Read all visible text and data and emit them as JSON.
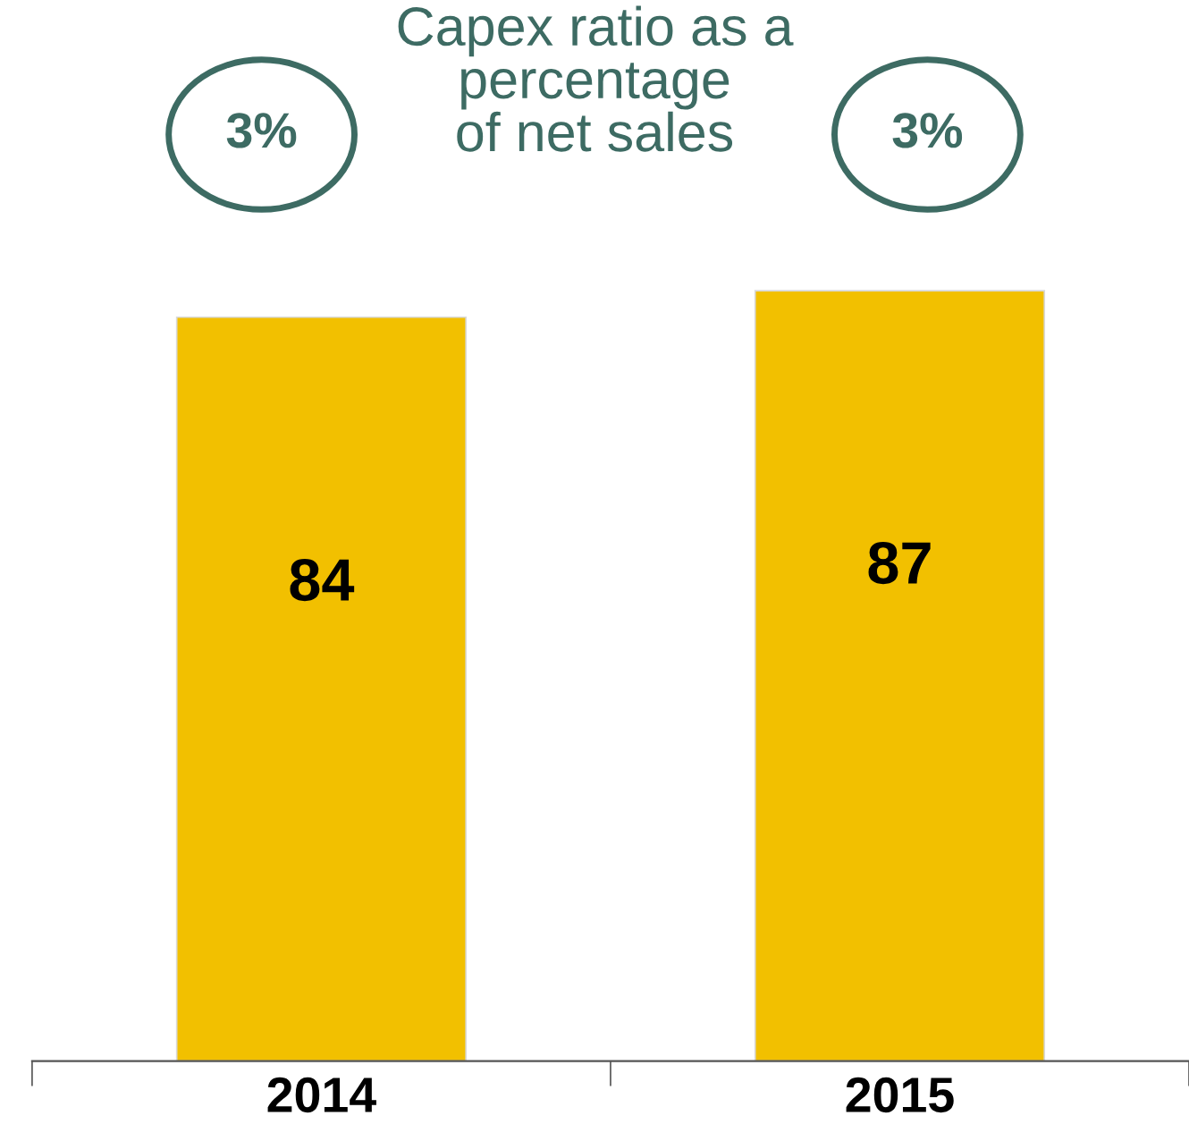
{
  "chart_data": {
    "type": "bar",
    "title": "Capex ratio as a\npercentage\nof net sales",
    "categories": [
      "2014",
      "2015"
    ],
    "values": [
      84,
      87
    ],
    "color": "#f2c000",
    "data_labels": true,
    "grid": false,
    "legend": false,
    "annotations": [
      "3%",
      "3%"
    ],
    "tick_labels": "x"
  }
}
